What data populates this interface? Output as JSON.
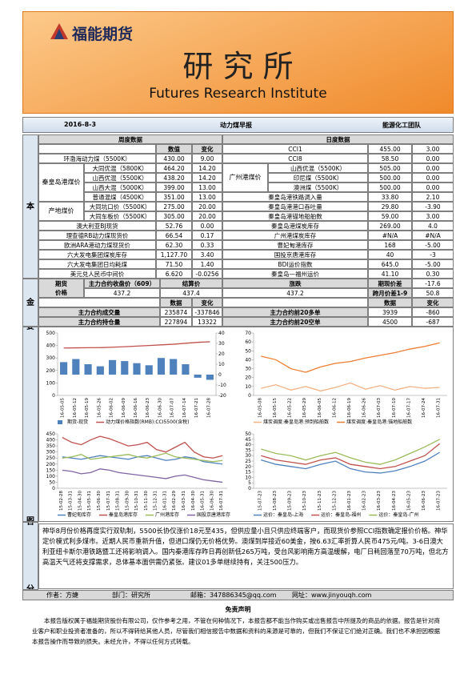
{
  "header": {
    "logo": "福能期货",
    "title": "研 究 所",
    "subtitle": "Futures Research Institute"
  },
  "info": {
    "date": "2016-8-3",
    "report": "动力煤早报",
    "team": "能源化工团队"
  },
  "basic": {
    "label": "基本面",
    "weekly": "周度数据",
    "daily": "日度数据",
    "value_header": "数值",
    "change_header": "变化",
    "left": [
      {
        "name": "环渤海动力煤（5500K）",
        "value": "430.00",
        "change": "9.00"
      },
      {
        "group": "秦皇岛港煤价",
        "items": [
          {
            "name": "大同优混（5800K）",
            "value": "464.20",
            "change": "14.20"
          },
          {
            "name": "山西优混（5500K）",
            "value": "438.20",
            "change": "14.20"
          },
          {
            "name": "山西大混（5000K）",
            "value": "399.00",
            "change": "13.00"
          },
          {
            "name": "普通混煤（4500K）",
            "value": "351.00",
            "change": "13.00"
          }
        ]
      },
      {
        "group": "产地煤价",
        "items": [
          {
            "name": "大同坑口价（5500K）",
            "value": "275.00",
            "change": "20.00"
          },
          {
            "name": "大同车板价（5500K）",
            "value": "305.00",
            "change": "20.00"
          }
        ]
      },
      {
        "name": "澳大利亚BJ现货",
        "value": "52.76",
        "change": "0.00"
      },
      {
        "name": "理查德RB动力煤现货价",
        "value": "66.54",
        "change": "0.17"
      },
      {
        "name": "欧洲ARA港动力煤现货价",
        "value": "62.30",
        "change": "0.33"
      },
      {
        "name": "六大发电集团煤炭库存",
        "value": "1,127.70",
        "change": "3.40"
      },
      {
        "name": "六大发电集团日均耗煤",
        "value": "71.50",
        "change": "1.40"
      },
      {
        "name": "美元兑人民币中间价",
        "value": "6.620",
        "change": "-0.0256"
      }
    ],
    "right": [
      {
        "name": "CCI1",
        "value": "455.00",
        "change": "3.00"
      },
      {
        "name": "CCI8",
        "value": "58.50",
        "change": "0.00"
      },
      {
        "group": "广州港煤价",
        "items": [
          {
            "name": "山西优混（5500K）",
            "value": "505.00",
            "change": "0.00"
          },
          {
            "name": "印尼煤（5500K）",
            "value": "500.00",
            "change": "0.00"
          },
          {
            "name": "澳洲煤（5500K）",
            "value": "500.00",
            "change": "0.00"
          }
        ]
      },
      {
        "name": "秦皇岛港铁路调入量",
        "value": "33.80",
        "change": "2.10"
      },
      {
        "name": "秦皇岛港港口吞吐量",
        "value": "29.80",
        "change": "-3.90"
      },
      {
        "name": "秦皇岛港锚地船舶数",
        "value": "59.00",
        "change": "3.00"
      },
      {
        "name": "秦皇岛港煤炭库存",
        "value": "269.00",
        "change": "4.0"
      },
      {
        "name": "广州港煤炭库存",
        "value": "#N/A",
        "change": "#N/A"
      },
      {
        "name": "曹妃甸港库存",
        "value": "168",
        "change": "-5.00"
      },
      {
        "name": "国投京唐港库存",
        "value": "40",
        "change": "-3"
      },
      {
        "name": "BDI运价指数",
        "value": "645.0",
        "change": "-5.00"
      },
      {
        "name": "秦皇岛—福州运价",
        "value": "41.10",
        "change": "0.30"
      }
    ]
  },
  "fund": {
    "label": "资金面",
    "price_label": [
      "期货",
      "价格"
    ],
    "close_label": "主力合约收盘价（609）",
    "settle_label": "结算价",
    "change_label": "涨跌",
    "close": "437.2",
    "settle": "437.4",
    "change": "437.2",
    "spread_label": "期现价差",
    "spread": "-17.6",
    "cross_label": "跨月价差1-9",
    "cross": "50.8",
    "headers": [
      "数据",
      "变化",
      "数据",
      "变化"
    ],
    "rows": [
      {
        "name": "主力合约成交量",
        "value": "235874",
        "change": "-337846",
        "name2": "主力合约前20多单",
        "value2": "3939",
        "change2": "-860"
      },
      {
        "name": "主力合约持仓量",
        "value": "227894",
        "change": "13322",
        "name2": "主力合约前20空单",
        "value2": "4500",
        "change2": "-687"
      }
    ]
  },
  "charts_label": "重要图表",
  "charts": [
    {
      "type": "line",
      "categories": [
        "16-05-05",
        "16-05-12",
        "16-05-19",
        "16-05-26",
        "16-06-02",
        "16-06-09",
        "16-06-16",
        "16-06-23",
        "16-06-30",
        "16-07-07",
        "16-07-14",
        "16-07-21",
        "16-07-28"
      ],
      "ylim": [
        0,
        500
      ],
      "yticks": [
        0,
        100,
        200,
        300,
        400,
        500
      ],
      "y2lim": [
        -20,
        40
      ],
      "y2ticks": [
        -20,
        -10,
        0,
        10,
        20,
        30,
        40
      ],
      "series": [
        {
          "name": "期货-现货",
          "kind": "bar",
          "axis": "y2",
          "color": "#4f81bd",
          "values": [
            12,
            15,
            10,
            8,
            14,
            13,
            11,
            9,
            16,
            15,
            10,
            -3,
            -5
          ]
        },
        {
          "name": "动力煤价格指数(RMB):CCI5500(含税)",
          "color": "#c0504d",
          "values": [
            380,
            381,
            382,
            383,
            386,
            390,
            395,
            400,
            405,
            410,
            418,
            425,
            430
          ]
        }
      ]
    },
    {
      "type": "line",
      "categories": [
        "16-05-08",
        "16-05-15",
        "16-05-22",
        "16-05-29",
        "16-06-05",
        "16-06-12",
        "16-06-19",
        "16-06-26",
        "16-07-03",
        "16-07-10",
        "16-07-17",
        "16-07-24",
        "16-07-31"
      ],
      "ylim": [
        0,
        70
      ],
      "yticks": [
        0,
        10,
        20,
        30,
        40,
        50,
        60,
        70
      ],
      "series": [
        {
          "name": "煤炭调度:秦皇岛港:预到船舶数",
          "color": "#f4b183",
          "values": [
            8,
            12,
            6,
            10,
            5,
            9,
            14,
            7,
            11,
            6,
            10,
            8,
            9
          ]
        },
        {
          "name": "煤炭调度:秦皇岛港:锚地船舶数",
          "color": "#ed7d31",
          "values": [
            44,
            40,
            30,
            26,
            32,
            36,
            38,
            42,
            45,
            48,
            52,
            55,
            59
          ]
        }
      ]
    },
    {
      "type": "line",
      "categories": [
        "15-02-28",
        "15-03-31",
        "15-04-30",
        "15-05-31",
        "15-06-30",
        "15-07-31",
        "15-08-31",
        "15-09-30",
        "15-10-31",
        "15-11-30",
        "15-12-31",
        "16-01-31",
        "16-02-29",
        "16-03-31",
        "16-04-30",
        "16-05-31",
        "16-06-30",
        "16-07-31"
      ],
      "ylim": [
        0,
        450
      ],
      "yticks": [
        0,
        50,
        100,
        150,
        200,
        250,
        300,
        350,
        400,
        450
      ],
      "series": [
        {
          "name": "曹妃甸库存",
          "color": "#4f81bd",
          "values": [
            260,
            250,
            240,
            255,
            270,
            260,
            250,
            240,
            260,
            270,
            250,
            230,
            240,
            260,
            250,
            220,
            210,
            200
          ]
        },
        {
          "name": "秦皇岛港库存",
          "color": "#c0504d",
          "values": [
            420,
            380,
            360,
            400,
            430,
            410,
            380,
            350,
            360,
            380,
            320,
            300,
            340,
            380,
            300,
            260,
            250,
            270
          ]
        },
        {
          "name": "广州港库存",
          "color": "#9bbb59",
          "values": [
            250,
            260,
            280,
            240,
            250,
            260,
            270,
            280,
            260,
            250,
            270,
            290,
            260,
            250,
            240,
            230,
            220,
            230
          ]
        },
        {
          "name": "国投京唐港库存",
          "color": "#8064a2",
          "values": [
            150,
            140,
            120,
            130,
            160,
            150,
            130,
            120,
            110,
            100,
            90,
            80,
            100,
            110,
            90,
            70,
            60,
            50
          ]
        }
      ]
    },
    {
      "type": "line",
      "categories": [
        "15-07-23",
        "15-08-23",
        "15-09-23",
        "15-10-23",
        "15-11-23",
        "15-12-23",
        "16-01-23",
        "16-02-23",
        "16-03-23",
        "16-04-23",
        "16-05-23",
        "16-06-23",
        "16-07-23"
      ],
      "ylim": [
        0,
        50
      ],
      "yticks": [
        0,
        5,
        10,
        15,
        20,
        25,
        30,
        35,
        40,
        45,
        50
      ],
      "series": [
        {
          "name": "运价：秦皇岛-上海",
          "color": "#4f81bd",
          "values": [
            26,
            22,
            20,
            18,
            22,
            25,
            18,
            15,
            14,
            16,
            20,
            25,
            33
          ]
        },
        {
          "name": "运价：秦皇岛-福州",
          "color": "#c0504d",
          "values": [
            30,
            26,
            24,
            22,
            26,
            28,
            22,
            20,
            18,
            20,
            25,
            30,
            41
          ]
        },
        {
          "name": "运价：秦皇岛-广州",
          "color": "#9bbb59",
          "values": [
            36,
            32,
            30,
            26,
            30,
            33,
            28,
            24,
            22,
            26,
            32,
            38,
            45
          ]
        }
      ]
    }
  ],
  "analysis": {
    "label": "综合分析",
    "text": "神华8月份价格再度实行双轨制，5500长协仅涨价18元至435，但供应量小且只供应终端客户，而现货价参照CCI指数确定报价价格。神华定价模式利多煤市。近期人民币重新升值，但进口煤仍无价格优势。澳煤到岸接近60美金，按6.63汇率折算人民币475元/吨。3-6日澳大利亚纽卡斯尔港铁路暨工还将影响调入。国内秦港库存昨日再创新低265万吨，受台风影响南方高温缓解，电厂日耗回落至70万吨，但北方高温天气还将支撑需求，总体基本面供需仍紧张。建议01多单继续持有，关注500压力。"
  },
  "footer": {
    "author": "作者：方婕",
    "department": "部门：研究所",
    "email": "邮箱：347886345@qq.com",
    "website": "网址：www.jinyouqh.com"
  },
  "disclaimer": {
    "title": "免责声明",
    "text": "本报告版权属于福能期货股份有限公司，仅作参考之用，不管在何种情况下，本报告都不能当作购买或出售报告中所提及的商品的依据。报告是针对商业客户和职业投资者准备的，所以不得转给其他人员，尽管我们相信报告中数据和资料的来源是可靠的，但我们不保证它们绝对正确。我们也不承担因根据本报告操作而导致的损失。未经允许，不得以任何方式转载。"
  }
}
